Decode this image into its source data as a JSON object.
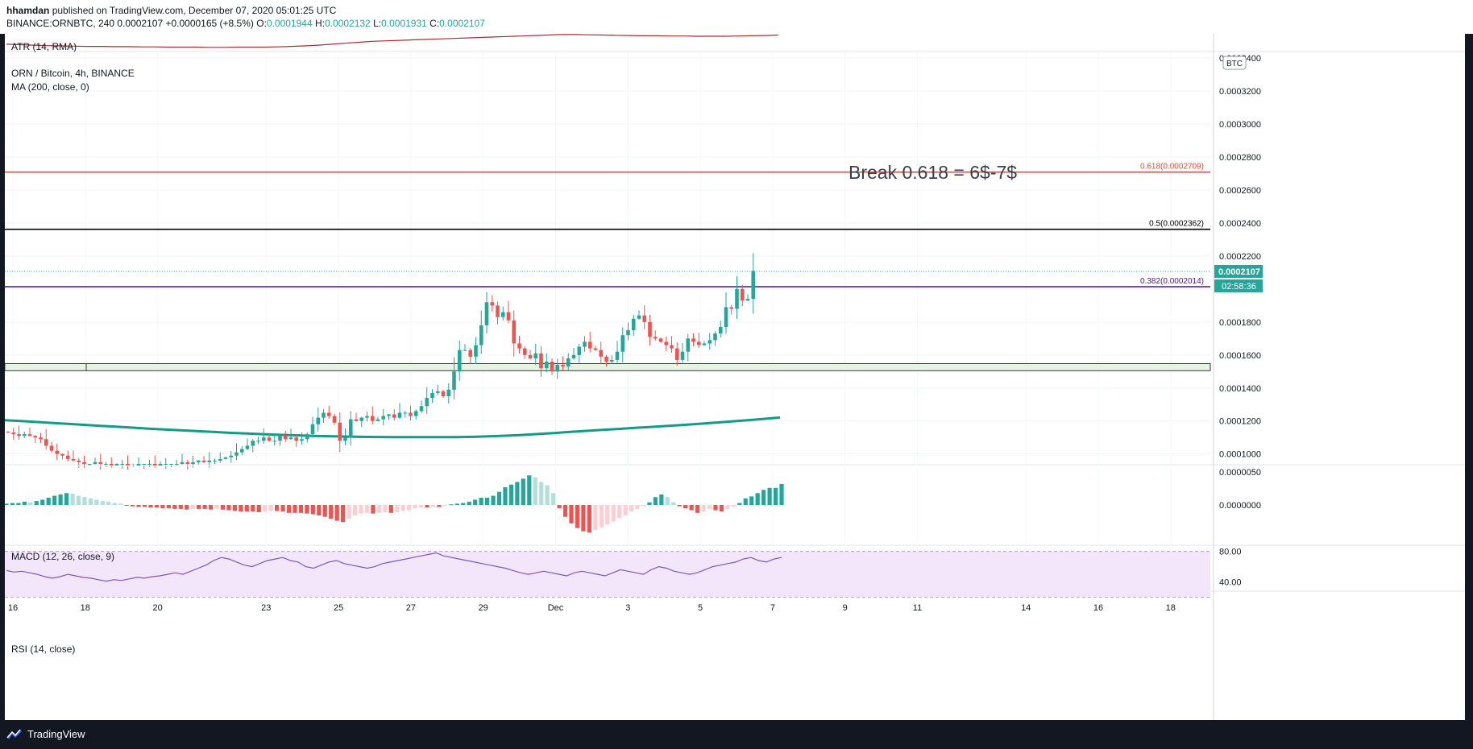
{
  "header": {
    "published_by": "hhamdan",
    "published_text": "published on TradingView.com, December 07, 2020 05:01:25 UTC",
    "symbol": "BINANCE:ORNBTC, 240",
    "last": "0.0002107",
    "change": "+0.0000165 (+8.5%)",
    "o_label": "O:",
    "o_value": "0.0001944",
    "h_label": "H:",
    "h_value": "0.0002132",
    "l_label": "L:",
    "l_value": "0.0001931",
    "c_label": "C:",
    "c_value": "0.0002107"
  },
  "colors": {
    "up": "#26a69a",
    "down": "#ef5350",
    "up_light": "#b2dfdb",
    "down_light": "#ffcdd2",
    "ma": "#129b86",
    "atr": "#b22833",
    "rsi": "#7e57c2",
    "fib_618": "#e74c3c",
    "fib_05": "#000000",
    "fib_382": "#4a148c",
    "zone_fill": "#e6f4e4",
    "price_tag": "#26a69a"
  },
  "panes": {
    "atr_label": "ATR (14, RMA)",
    "main_label": "ORN / Bitcoin, 4h, BINANCE",
    "ma_label": "MA (200, close, 0)",
    "macd_label": "MACD (12, 26, close, 9)",
    "rsi_label": "RSI (14, close)",
    "currency": "BTC"
  },
  "annotation": "Break 0.618 = 6$-7$",
  "chart_data": {
    "type": "candlestick",
    "title": "ORN / Bitcoin, 4h, BINANCE",
    "x_ticks": [
      "16",
      "18",
      "20",
      "23",
      "25",
      "27",
      "29",
      "Dec",
      "3",
      "5",
      "7",
      "9",
      "11",
      "14",
      "16",
      "18"
    ],
    "y_ticks": [
      "0.0003400",
      "0.0003200",
      "0.0003000",
      "0.0002800",
      "0.0002600",
      "0.0002400",
      "0.0002200",
      "0.0002000",
      "0.0001800",
      "0.0001600",
      "0.0001400",
      "0.0001200",
      "0.0001000"
    ],
    "ylim": [
      9.35e-05,
      0.000343
    ],
    "last_price": "0.0002107",
    "countdown": "02:58:36",
    "fib_levels": [
      {
        "label": "0.618(0.0002709)",
        "value": 0.0002709
      },
      {
        "label": "0.5(0.0002362)",
        "value": 0.0002362
      },
      {
        "label": "0.382(0.0002014)",
        "value": 0.0002014
      }
    ],
    "zone": [
      0.0001505,
      0.0001548
    ],
    "close_path": [
      0.000113,
      0.000112,
      0.000111,
      0.000112,
      0.000111,
      0.00011,
      0.000109,
      0.000105,
      0.000102,
      0.0001,
      9.9e-05,
      9.7e-05,
      9.6e-05,
      9.5e-05,
      9.4e-05,
      9.4e-05,
      9.5e-05,
      9.4e-05,
      9.4e-05,
      9.3e-05,
      9.4e-05,
      9.4e-05,
      9.3e-05,
      9.3e-05,
      9.4e-05,
      9.4e-05,
      9.4e-05,
      9.3e-05,
      9.4e-05,
      9.4e-05,
      9.4e-05,
      9.4e-05,
      9.5e-05,
      9.4e-05,
      9.5e-05,
      9.6e-05,
      9.5e-05,
      9.6e-05,
      9.6e-05,
      9.7e-05,
      9.8e-05,
      9.9e-05,
      0.000101,
      0.000103,
      0.000105,
      0.000108,
      0.000108,
      0.00011,
      0.000108,
      0.000108,
      0.000111,
      0.000109,
      0.00011,
      0.000108,
      0.000109,
      0.000112,
      0.000118,
      0.000122,
      0.000125,
      0.000123,
      0.000119,
      0.000108,
      0.00011,
      0.000121,
      0.00012,
      0.000122,
      0.000123,
      0.00012,
      0.000121,
      0.000123,
      0.000124,
      0.000122,
      0.000125,
      0.000125,
      0.000123,
      0.000126,
      0.000129,
      0.000134,
      0.000137,
      0.000138,
      0.000135,
      0.000139,
      0.00015,
      0.000163,
      0.000163,
      0.000159,
      0.000166,
      0.000178,
      0.000192,
      0.00019,
      0.000183,
      0.000186,
      0.000181,
      0.000167,
      0.000164,
      0.00016,
      0.000158,
      0.000161,
      0.000152,
      0.000156,
      0.00015,
      0.000154,
      0.000153,
      0.000158,
      0.00016,
      0.000165,
      0.000168,
      0.000164,
      0.000163,
      0.000159,
      0.000156,
      0.000157,
      0.000162,
      0.000172,
      0.000175,
      0.000182,
      0.000184,
      0.00018,
      0.000171,
      0.00017,
      0.000168,
      0.000166,
      0.000164,
      0.000157,
      0.000162,
      0.00017,
      0.000168,
      0.000166,
      0.000167,
      0.000169,
      0.000173,
      0.000177,
      0.000189,
      0.000188,
      0.0002,
      0.000193,
      0.000194,
      0.000211
    ],
    "ma200": [
      0.0001205,
      0.00012,
      0.0001194,
      0.0001188,
      0.0001182,
      0.0001176,
      0.000117,
      0.0001165,
      0.0001159,
      0.0001153,
      0.0001148,
      0.0001143,
      0.0001138,
      0.0001133,
      0.0001128,
      0.0001124,
      0.000112,
      0.0001116,
      0.0001113,
      0.000111,
      0.0001108,
      0.0001106,
      0.0001104,
      0.0001103,
      0.0001102,
      0.0001102,
      0.0001102,
      0.0001102,
      0.0001102,
      0.0001104,
      0.0001107,
      0.0001111,
      0.0001115,
      0.0001121,
      0.0001127,
      0.0001134,
      0.000114,
      0.0001146,
      0.0001152,
      0.0001158,
      0.0001164,
      0.000117,
      0.0001176,
      0.0001183,
      0.000119,
      0.0001197,
      0.0001205,
      0.0001213,
      0.0001221
    ],
    "macd_hist": [
      2e-07,
      3e-07,
      3e-07,
      5e-07,
      4e-07,
      6e-07,
      8e-07,
      1.1e-06,
      1.4e-06,
      1.6e-06,
      1.8e-06,
      1.7e-06,
      1.4e-06,
      1.2e-06,
      1e-06,
      8e-07,
      6e-07,
      5e-07,
      3e-07,
      2e-07,
      -1e-07,
      -2e-07,
      -3e-07,
      -3e-07,
      -4e-07,
      -4e-07,
      -5e-07,
      -5e-07,
      -6e-07,
      -6e-07,
      -7e-07,
      -6e-07,
      -6e-07,
      -6e-07,
      -7e-07,
      -6e-07,
      -7e-07,
      -8e-07,
      -9e-07,
      -1e-06,
      -1e-06,
      -1e-06,
      -1.1e-06,
      -1e-06,
      -9e-07,
      -9e-07,
      -1e-06,
      -1.2e-06,
      -1.2e-06,
      -1.2e-06,
      -1.3e-06,
      -1.4e-06,
      -1.6e-06,
      -1.8e-06,
      -2.1e-06,
      -2.4e-06,
      -2.6e-06,
      -2.1e-06,
      -1.6e-06,
      -1.3e-06,
      -1.2e-06,
      -1.3e-06,
      -1.2e-06,
      -1.1e-06,
      -1.2e-06,
      -1.1e-06,
      -9e-07,
      -8e-07,
      -5e-07,
      -4e-07,
      -4e-07,
      -3e-07,
      -3e-07,
      -1e-07,
      1e-07,
      2e-07,
      3e-07,
      5e-07,
      8e-07,
      1.1e-06,
      1.1e-06,
      1.4e-06,
      2e-06,
      2.7e-06,
      3.1e-06,
      3.5e-06,
      4e-06,
      4.5e-06,
      4.2e-06,
      3.5e-06,
      3e-06,
      1.8e-06,
      -5e-07,
      -1.8e-06,
      -2.8e-06,
      -3.5e-06,
      -4e-06,
      -4.2e-06,
      -3.8e-06,
      -3.4e-06,
      -3e-06,
      -2.5e-06,
      -2e-06,
      -1.6e-06,
      -1e-06,
      -6e-07,
      -2e-07,
      4e-07,
      1.2e-06,
      1.6e-06,
      1.2e-06,
      4e-07,
      -2e-07,
      -5e-07,
      -8e-07,
      -1.2e-06,
      -1e-06,
      -6e-07,
      -8e-07,
      -1e-06,
      -6e-07,
      -3e-07,
      3e-07,
      1e-06,
      1.3e-06,
      1.8e-06,
      2.3e-06,
      2.6e-06,
      2.6e-06,
      3.2e-06
    ],
    "rsi": [
      55,
      53,
      54,
      52,
      50,
      47,
      45,
      47,
      50,
      48,
      46,
      45,
      43,
      41,
      43,
      42,
      44,
      46,
      45,
      47,
      48,
      50,
      52,
      50,
      54,
      58,
      62,
      68,
      72,
      70,
      66,
      62,
      60,
      64,
      68,
      70,
      72,
      68,
      66,
      60,
      58,
      62,
      66,
      68,
      64,
      62,
      60,
      58,
      60,
      64,
      66,
      68,
      70,
      72,
      74,
      76,
      78,
      74,
      72,
      70,
      68,
      66,
      64,
      62,
      60,
      58,
      55,
      52,
      50,
      52,
      54,
      52,
      50,
      48,
      52,
      54,
      52,
      50,
      48,
      52,
      56,
      54,
      52,
      50,
      56,
      60,
      58,
      54,
      52,
      50,
      52,
      56,
      60,
      62,
      64,
      66,
      70,
      72,
      68,
      66,
      70,
      72
    ],
    "macd_ylim": [
      -6e-06,
      6e-06
    ],
    "rsi_ticks": [
      "80.00",
      "40.00"
    ],
    "atr_path": [
      0.62,
      0.6,
      0.58,
      0.56,
      0.55,
      0.54,
      0.53,
      0.53,
      0.52,
      0.52,
      0.51,
      0.51,
      0.5,
      0.5,
      0.5,
      0.49,
      0.49,
      0.5,
      0.5,
      0.5,
      0.51,
      0.53,
      0.55,
      0.58,
      0.62,
      0.66,
      0.7,
      0.74,
      0.76,
      0.78,
      0.8,
      0.82,
      0.84,
      0.86,
      0.88,
      0.9,
      0.92,
      0.94,
      0.96,
      0.98,
      1.0,
      1.02,
      1.02,
      1.01,
      1.0,
      0.99,
      0.98,
      0.97,
      0.97,
      0.96,
      0.96,
      0.95,
      0.95,
      0.95,
      0.96,
      0.97,
      0.98,
      1.0
    ]
  }
}
